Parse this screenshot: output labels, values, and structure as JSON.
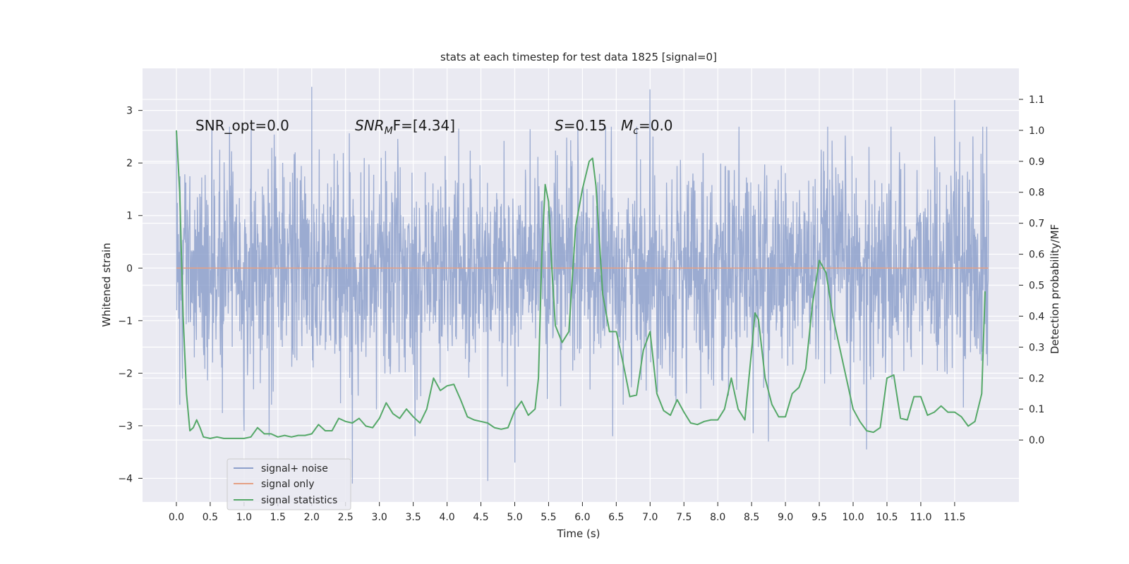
{
  "chart_data": {
    "type": "line",
    "title": "stats at each timestep for test data 1825 [signal=0]",
    "xlabel": "Time (s)",
    "ylabel": "Whitened strain",
    "y2label": "Detection probability/MF",
    "xlim": [
      -0.5,
      12.45
    ],
    "ylim": [
      -4.45,
      3.8
    ],
    "y2lim": [
      -0.2,
      1.2
    ],
    "x_ticks": [
      0.0,
      0.5,
      1.0,
      1.5,
      2.0,
      2.5,
      3.0,
      3.5,
      4.0,
      4.5,
      5.0,
      5.5,
      6.0,
      6.5,
      7.0,
      7.5,
      8.0,
      8.5,
      9.0,
      9.5,
      10.0,
      10.5,
      11.0,
      11.5
    ],
    "x_tick_labels": [
      "0.0",
      "0.5",
      "1.0",
      "1.5",
      "2.0",
      "2.5",
      "3.0",
      "3.5",
      "4.0",
      "4.5",
      "5.0",
      "5.5",
      "6.0",
      "6.5",
      "7.0",
      "7.5",
      "8.0",
      "8.5",
      "9.0",
      "9.5",
      "10.0",
      "10.5",
      "11.0",
      "11.5"
    ],
    "y_ticks": [
      3,
      2,
      1,
      0,
      -1,
      -2,
      -3,
      -4
    ],
    "y_tick_labels": [
      "3",
      "2",
      "1",
      "0",
      "−1",
      "−2",
      "−3",
      "−4"
    ],
    "y2_ticks": [
      1.1,
      1.0,
      0.9,
      0.8,
      0.7,
      0.6,
      0.5,
      0.4,
      0.3,
      0.2,
      0.1,
      0.0
    ],
    "y2_tick_labels": [
      "1.1",
      "1.0",
      "0.9",
      "0.8",
      "0.7",
      "0.6",
      "0.5",
      "0.4",
      "0.3",
      "0.2",
      "0.1",
      "0.0"
    ],
    "grid": true,
    "legend_position": "lower-left",
    "annotations": {
      "snr_opt": "SNR_opt=0.0",
      "snr_mf_prefix": "SNR",
      "snr_mf_sub": "M",
      "snr_mf_suffix": "F=[4.34]",
      "s_sym": "S",
      "s_val": "=0.15",
      "mc_sym": "M",
      "mc_sub": "c",
      "mc_val": "=0.0"
    },
    "series": [
      {
        "name": "signal+ noise",
        "color": "#8da0cb",
        "axis": "left",
        "description_range": [
          -4.1,
          3.45
        ],
        "x_range": [
          0.0,
          12.0
        ],
        "notable_spikes": [
          [
            0.0,
            2.6
          ],
          [
            0.05,
            -2.6
          ],
          [
            1.0,
            -3.1
          ],
          [
            2.0,
            3.45
          ],
          [
            2.6,
            -4.1
          ],
          [
            4.6,
            -4.05
          ],
          [
            5.0,
            -3.7
          ],
          [
            7.0,
            3.4
          ],
          [
            8.75,
            -3.3
          ],
          [
            10.2,
            -3.45
          ],
          [
            11.5,
            3.2
          ]
        ]
      },
      {
        "name": "signal only",
        "color": "#e5a084",
        "axis": "left",
        "x": [
          0.0,
          12.0
        ],
        "y": [
          0.0,
          0.0
        ]
      },
      {
        "name": "signal statistics",
        "color": "#55a868",
        "axis": "right",
        "x": [
          0.0,
          0.05,
          0.1,
          0.15,
          0.2,
          0.25,
          0.3,
          0.35,
          0.4,
          0.5,
          0.6,
          0.7,
          0.8,
          0.9,
          1.0,
          1.1,
          1.2,
          1.3,
          1.4,
          1.5,
          1.6,
          1.7,
          1.8,
          1.9,
          2.0,
          2.1,
          2.2,
          2.3,
          2.4,
          2.5,
          2.6,
          2.7,
          2.8,
          2.9,
          3.0,
          3.1,
          3.2,
          3.3,
          3.4,
          3.5,
          3.6,
          3.7,
          3.8,
          3.9,
          4.0,
          4.1,
          4.2,
          4.3,
          4.4,
          4.5,
          4.6,
          4.7,
          4.8,
          4.9,
          5.0,
          5.1,
          5.2,
          5.3,
          5.35,
          5.4,
          5.45,
          5.5,
          5.55,
          5.6,
          5.7,
          5.8,
          5.9,
          6.0,
          6.1,
          6.15,
          6.2,
          6.3,
          6.4,
          6.5,
          6.6,
          6.7,
          6.8,
          6.9,
          7.0,
          7.1,
          7.2,
          7.3,
          7.4,
          7.5,
          7.6,
          7.7,
          7.8,
          7.9,
          8.0,
          8.1,
          8.2,
          8.3,
          8.4,
          8.5,
          8.55,
          8.6,
          8.7,
          8.8,
          8.9,
          9.0,
          9.1,
          9.2,
          9.3,
          9.4,
          9.5,
          9.6,
          9.7,
          9.8,
          9.9,
          10.0,
          10.1,
          10.2,
          10.3,
          10.4,
          10.5,
          10.6,
          10.7,
          10.8,
          10.9,
          11.0,
          11.1,
          11.2,
          11.3,
          11.4,
          11.5,
          11.6,
          11.7,
          11.8,
          11.9,
          11.95
        ],
        "y": [
          1.0,
          0.8,
          0.4,
          0.15,
          0.03,
          0.04,
          0.065,
          0.04,
          0.01,
          0.005,
          0.01,
          0.005,
          0.005,
          0.005,
          0.005,
          0.01,
          0.04,
          0.02,
          0.02,
          0.01,
          0.015,
          0.01,
          0.015,
          0.015,
          0.02,
          0.05,
          0.03,
          0.03,
          0.07,
          0.06,
          0.055,
          0.07,
          0.045,
          0.04,
          0.07,
          0.12,
          0.085,
          0.07,
          0.1,
          0.075,
          0.055,
          0.1,
          0.2,
          0.16,
          0.175,
          0.18,
          0.13,
          0.075,
          0.065,
          0.06,
          0.055,
          0.04,
          0.035,
          0.04,
          0.095,
          0.125,
          0.08,
          0.1,
          0.2,
          0.6,
          0.825,
          0.77,
          0.55,
          0.37,
          0.315,
          0.35,
          0.69,
          0.81,
          0.9,
          0.91,
          0.82,
          0.47,
          0.35,
          0.35,
          0.25,
          0.14,
          0.145,
          0.29,
          0.35,
          0.15,
          0.095,
          0.08,
          0.13,
          0.09,
          0.055,
          0.05,
          0.06,
          0.065,
          0.065,
          0.1,
          0.2,
          0.1,
          0.065,
          0.29,
          0.41,
          0.39,
          0.2,
          0.115,
          0.075,
          0.075,
          0.15,
          0.17,
          0.23,
          0.44,
          0.58,
          0.54,
          0.4,
          0.3,
          0.2,
          0.1,
          0.06,
          0.03,
          0.025,
          0.04,
          0.2,
          0.21,
          0.07,
          0.065,
          0.14,
          0.14,
          0.08,
          0.09,
          0.11,
          0.09,
          0.09,
          0.075,
          0.045,
          0.06,
          0.15,
          0.48
        ]
      }
    ]
  }
}
